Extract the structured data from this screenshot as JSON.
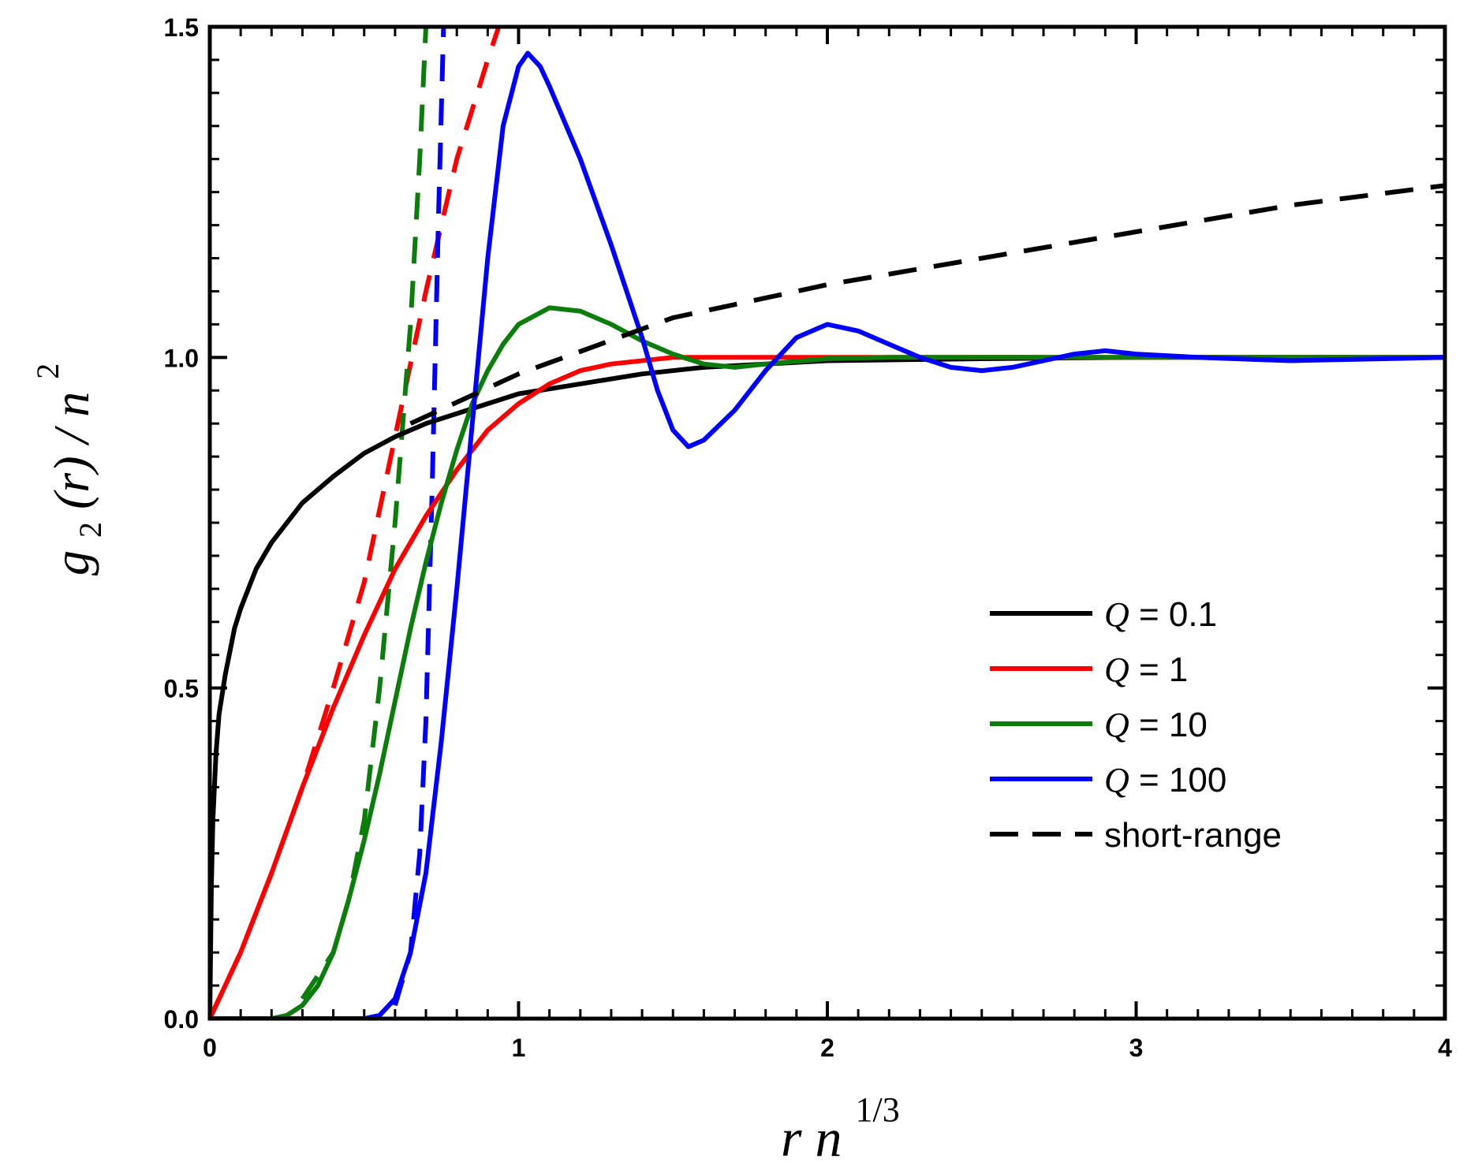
{
  "chart_data": {
    "type": "line",
    "title": "",
    "xlabel": {
      "base": "r n",
      "sup": "1/3"
    },
    "ylabel": {
      "g": "g",
      "sub": "2",
      "rest": "(r) / n",
      "sup": "2"
    },
    "xlim": [
      0,
      4
    ],
    "ylim": [
      0,
      1.5
    ],
    "x_ticks": [
      0,
      1,
      2,
      3,
      4
    ],
    "x_tick_labels": [
      "0",
      "1",
      "2",
      "3",
      "4"
    ],
    "y_ticks": [
      0,
      0.5,
      1,
      1.5
    ],
    "y_tick_labels": [
      "0.0",
      "0.5",
      "1.0",
      "1.5"
    ],
    "x_minor_step": 0.1,
    "y_minor_step": 0.05,
    "grid": false,
    "legend_position": "center-right",
    "series": [
      {
        "name": "Q = 0.1",
        "q_symbol": "Q",
        "label_rest": " = 0.1",
        "color": "#000000",
        "style": "solid",
        "points": [
          [
            0.0,
            0.0
          ],
          [
            0.005,
            0.2
          ],
          [
            0.01,
            0.3
          ],
          [
            0.02,
            0.4
          ],
          [
            0.03,
            0.46
          ],
          [
            0.05,
            0.52
          ],
          [
            0.08,
            0.59
          ],
          [
            0.1,
            0.62
          ],
          [
            0.15,
            0.68
          ],
          [
            0.2,
            0.72
          ],
          [
            0.3,
            0.78
          ],
          [
            0.4,
            0.82
          ],
          [
            0.5,
            0.855
          ],
          [
            0.6,
            0.88
          ],
          [
            0.7,
            0.9
          ],
          [
            0.8,
            0.915
          ],
          [
            0.9,
            0.93
          ],
          [
            1.0,
            0.945
          ],
          [
            1.2,
            0.96
          ],
          [
            1.4,
            0.975
          ],
          [
            1.6,
            0.985
          ],
          [
            1.8,
            0.99
          ],
          [
            2.0,
            0.995
          ],
          [
            2.5,
            0.998
          ],
          [
            3.0,
            1.0
          ],
          [
            4.0,
            1.0
          ]
        ]
      },
      {
        "name": "Q = 1",
        "q_symbol": "Q",
        "label_rest": " = 1",
        "color": "#ff0000",
        "style": "solid",
        "points": [
          [
            0.0,
            0.0
          ],
          [
            0.1,
            0.1
          ],
          [
            0.2,
            0.22
          ],
          [
            0.3,
            0.35
          ],
          [
            0.4,
            0.47
          ],
          [
            0.5,
            0.58
          ],
          [
            0.6,
            0.68
          ],
          [
            0.7,
            0.76
          ],
          [
            0.8,
            0.83
          ],
          [
            0.9,
            0.89
          ],
          [
            1.0,
            0.93
          ],
          [
            1.1,
            0.96
          ],
          [
            1.2,
            0.98
          ],
          [
            1.3,
            0.99
          ],
          [
            1.5,
            1.0
          ],
          [
            2.0,
            1.0
          ],
          [
            4.0,
            1.0
          ]
        ]
      },
      {
        "name": "Q = 10",
        "q_symbol": "Q",
        "label_rest": " = 10",
        "color": "#0a7d0a",
        "style": "solid",
        "points": [
          [
            0.0,
            0.0
          ],
          [
            0.2,
            0.0
          ],
          [
            0.25,
            0.005
          ],
          [
            0.3,
            0.02
          ],
          [
            0.35,
            0.05
          ],
          [
            0.4,
            0.1
          ],
          [
            0.45,
            0.18
          ],
          [
            0.5,
            0.27
          ],
          [
            0.55,
            0.37
          ],
          [
            0.6,
            0.48
          ],
          [
            0.65,
            0.59
          ],
          [
            0.7,
            0.69
          ],
          [
            0.75,
            0.78
          ],
          [
            0.8,
            0.86
          ],
          [
            0.85,
            0.93
          ],
          [
            0.9,
            0.98
          ],
          [
            0.95,
            1.02
          ],
          [
            1.0,
            1.05
          ],
          [
            1.1,
            1.075
          ],
          [
            1.2,
            1.07
          ],
          [
            1.3,
            1.05
          ],
          [
            1.4,
            1.025
          ],
          [
            1.5,
            1.005
          ],
          [
            1.6,
            0.99
          ],
          [
            1.7,
            0.985
          ],
          [
            1.8,
            0.99
          ],
          [
            2.0,
            0.998
          ],
          [
            2.2,
            1.0
          ],
          [
            4.0,
            1.0
          ]
        ]
      },
      {
        "name": "Q = 100",
        "q_symbol": "Q",
        "label_rest": " = 100",
        "color": "#0000ff",
        "style": "solid",
        "points": [
          [
            0.0,
            0.0
          ],
          [
            0.5,
            0.0
          ],
          [
            0.55,
            0.005
          ],
          [
            0.6,
            0.03
          ],
          [
            0.65,
            0.1
          ],
          [
            0.7,
            0.22
          ],
          [
            0.75,
            0.42
          ],
          [
            0.8,
            0.65
          ],
          [
            0.85,
            0.9
          ],
          [
            0.9,
            1.15
          ],
          [
            0.95,
            1.35
          ],
          [
            1.0,
            1.44
          ],
          [
            1.03,
            1.46
          ],
          [
            1.07,
            1.44
          ],
          [
            1.1,
            1.41
          ],
          [
            1.2,
            1.3
          ],
          [
            1.3,
            1.17
          ],
          [
            1.4,
            1.03
          ],
          [
            1.45,
            0.95
          ],
          [
            1.5,
            0.89
          ],
          [
            1.55,
            0.865
          ],
          [
            1.6,
            0.875
          ],
          [
            1.7,
            0.92
          ],
          [
            1.8,
            0.98
          ],
          [
            1.9,
            1.03
          ],
          [
            2.0,
            1.05
          ],
          [
            2.1,
            1.04
          ],
          [
            2.2,
            1.02
          ],
          [
            2.3,
            1.0
          ],
          [
            2.4,
            0.985
          ],
          [
            2.5,
            0.98
          ],
          [
            2.6,
            0.985
          ],
          [
            2.7,
            0.995
          ],
          [
            2.8,
            1.005
          ],
          [
            2.9,
            1.01
          ],
          [
            3.0,
            1.005
          ],
          [
            3.2,
            1.0
          ],
          [
            3.5,
            0.995
          ],
          [
            4.0,
            1.0
          ]
        ]
      },
      {
        "name": "short-range",
        "label_rest": "short-range",
        "color": "#000000",
        "style": "dashed",
        "points": [
          [
            0.65,
            0.9
          ],
          [
            1.0,
            0.975
          ],
          [
            1.5,
            1.06
          ],
          [
            2.0,
            1.11
          ],
          [
            2.5,
            1.15
          ],
          [
            3.0,
            1.19
          ],
          [
            3.5,
            1.23
          ],
          [
            4.0,
            1.26
          ]
        ]
      }
    ],
    "short_range_curves": [
      {
        "color": "#ff0000",
        "points": [
          [
            0.0,
            0.0
          ],
          [
            0.1,
            0.1
          ],
          [
            0.2,
            0.22
          ],
          [
            0.3,
            0.35
          ],
          [
            0.4,
            0.5
          ],
          [
            0.5,
            0.66
          ],
          [
            0.6,
            0.88
          ],
          [
            0.7,
            1.1
          ],
          [
            0.8,
            1.3
          ],
          [
            0.9,
            1.45
          ],
          [
            0.95,
            1.52
          ]
        ]
      },
      {
        "color": "#0a7d0a",
        "points": [
          [
            0.3,
            0.03
          ],
          [
            0.4,
            0.1
          ],
          [
            0.45,
            0.18
          ],
          [
            0.5,
            0.3
          ],
          [
            0.55,
            0.5
          ],
          [
            0.6,
            0.75
          ],
          [
            0.65,
            1.05
          ],
          [
            0.68,
            1.3
          ],
          [
            0.7,
            1.5
          ]
        ]
      },
      {
        "color": "#0000ff",
        "points": [
          [
            0.6,
            0.02
          ],
          [
            0.65,
            0.1
          ],
          [
            0.68,
            0.25
          ],
          [
            0.7,
            0.45
          ],
          [
            0.72,
            0.8
          ],
          [
            0.74,
            1.2
          ],
          [
            0.76,
            1.55
          ]
        ]
      }
    ]
  }
}
